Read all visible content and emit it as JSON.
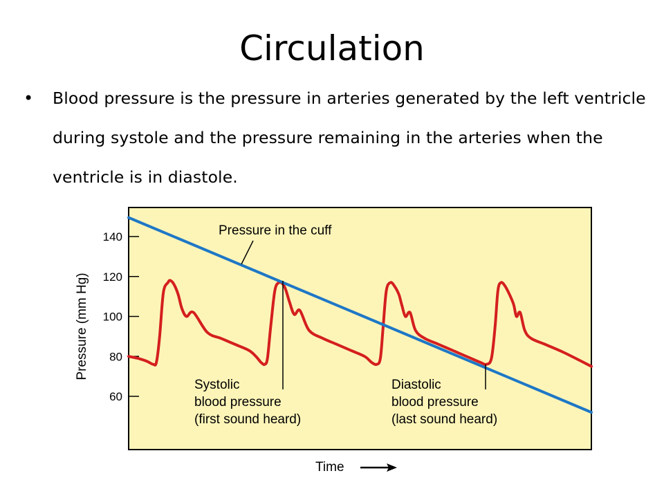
{
  "slide": {
    "title": "Circulation",
    "bullet": "Blood pressure is the pressure in arteries generated by the left ventricle during systole and the pressure remaining in the arteries when the ventricle is in diastole."
  },
  "chart_data": {
    "type": "line",
    "xlabel": "Time",
    "ylabel": "Pressure (mm Hg)",
    "yticks": [
      60,
      80,
      100,
      120,
      140
    ],
    "ylim": [
      30,
      150
    ],
    "x_ticks_shown": false,
    "grid": false,
    "background_color": "#fdf5b8",
    "series": [
      {
        "role": "cuff",
        "color": "#1e77c6",
        "x": [
          0,
          100
        ],
        "y": [
          149.5,
          52
        ]
      },
      {
        "role": "arterial",
        "color": "#d41f1f",
        "x": [
          0,
          2,
          4,
          5.3,
          6,
          6.7,
          7.5,
          8.5,
          9,
          9.8,
          10.7,
          11.5,
          12.5,
          14,
          17,
          20,
          23,
          26,
          27.5,
          28.6,
          29.4,
          30,
          30.7,
          31.6,
          32.5,
          33.4,
          34,
          34.8,
          35.8,
          37,
          39,
          42,
          45,
          48,
          51,
          52.5,
          53.6,
          54.4,
          55,
          55.7,
          56.6,
          57.5,
          58.4,
          59,
          59.8,
          60.8,
          62,
          64,
          67,
          70,
          73,
          76,
          77.3,
          78.4,
          79.2,
          79.8,
          80.5,
          81.4,
          82.3,
          83.2,
          83.8,
          84.6,
          85.6,
          87,
          90,
          94,
          100
        ],
        "y": [
          80,
          79,
          77.5,
          76,
          77,
          90,
          112,
          117,
          118,
          116,
          111,
          104,
          100,
          102,
          92,
          89,
          86,
          83,
          80,
          77,
          76,
          79,
          95,
          113,
          117,
          116,
          113,
          107,
          101,
          103,
          93,
          89,
          86,
          83,
          80,
          77,
          76,
          79,
          95,
          113,
          117,
          115,
          111,
          106,
          100,
          102,
          93,
          89,
          86,
          83,
          80,
          77,
          76,
          79,
          95,
          113,
          117,
          115,
          111,
          106,
          100,
          102,
          93,
          89,
          86,
          82,
          75
        ]
      }
    ],
    "annotations": [
      {
        "id": "cuff",
        "text": "Pressure in the cuff",
        "lines": [
          "Pressure in the cuff"
        ]
      },
      {
        "id": "systolic",
        "lines": [
          "Systolic",
          "blood pressure",
          "(first sound heard)"
        ]
      },
      {
        "id": "diastolic",
        "lines": [
          "Diastolic",
          "blood pressure",
          "(last sound heard)"
        ]
      }
    ]
  }
}
